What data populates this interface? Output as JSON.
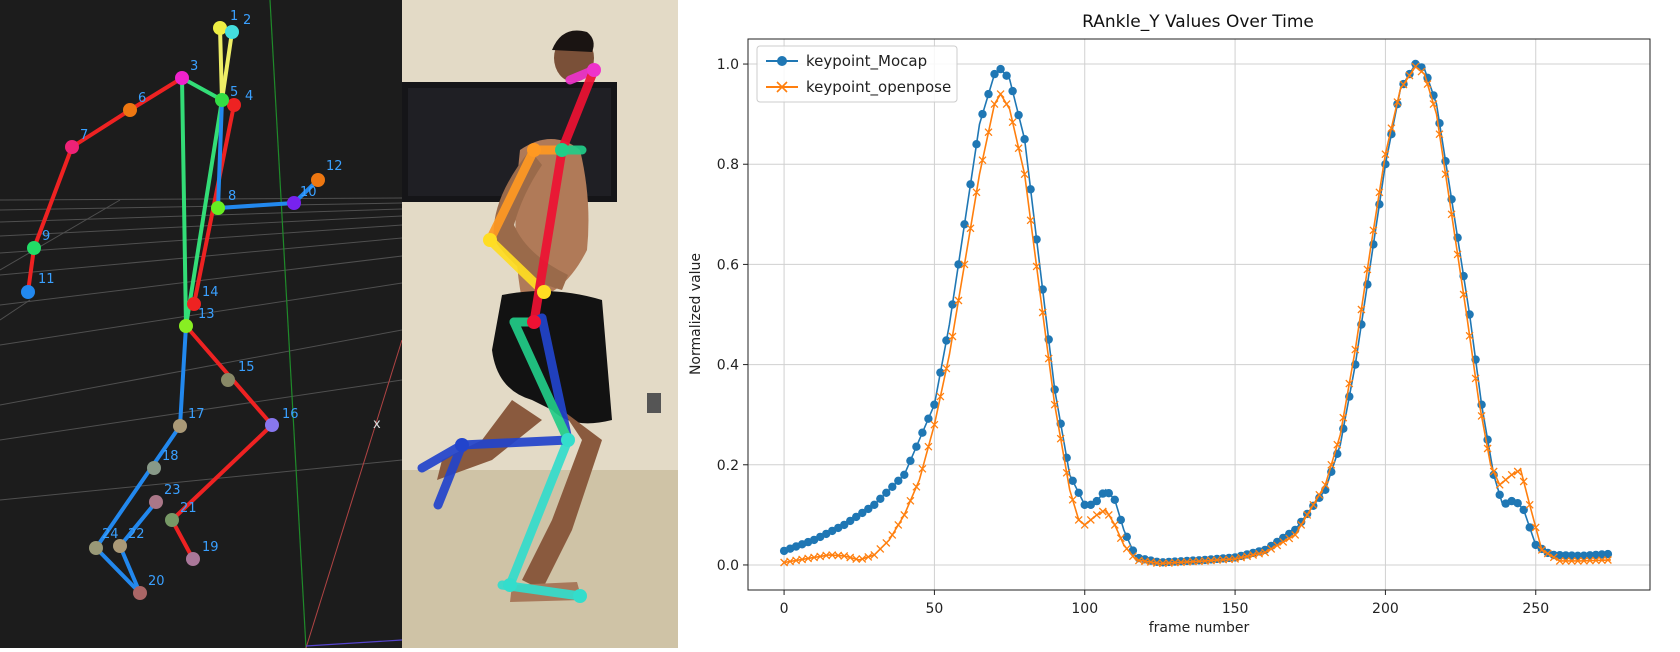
{
  "skeleton": {
    "keypoint_labels": [
      "1",
      "2",
      "3",
      "4",
      "5",
      "6",
      "7",
      "8",
      "9",
      "10",
      "11",
      "12",
      "13",
      "14",
      "15",
      "16",
      "17",
      "18",
      "19",
      "20",
      "21",
      "22",
      "23",
      "24"
    ],
    "axis_marker": "x",
    "colors": {
      "red": "#ee2222",
      "blue": "#2288ee",
      "green": "#33dd77",
      "yellow": "#eeee66"
    }
  },
  "photo": {
    "colors": {
      "magenta": "#ee33cc",
      "orange": "#ff9922",
      "yellow": "#ffdd22",
      "red": "#ee1133",
      "green": "#22cc88",
      "blue": "#2244cc",
      "cyan": "#33ddcc"
    }
  },
  "chart_data": {
    "type": "line",
    "title": "RAnkle_Y Values Over Time",
    "xlabel": "frame number",
    "ylabel": "Normalized value",
    "xlim": [
      -12,
      288
    ],
    "ylim": [
      -0.05,
      1.05
    ],
    "xticks": [
      0,
      50,
      100,
      150,
      200,
      250
    ],
    "yticks": [
      0.0,
      0.2,
      0.4,
      0.6,
      0.8,
      1.0
    ],
    "grid": true,
    "legend_position": "top-left",
    "x_range": [
      0,
      275
    ],
    "series": [
      {
        "name": "keypoint_Mocap",
        "color": "#1f77b4",
        "marker": "circle",
        "points": [
          [
            0,
            0.028
          ],
          [
            10,
            0.05
          ],
          [
            20,
            0.08
          ],
          [
            30,
            0.12
          ],
          [
            40,
            0.18
          ],
          [
            50,
            0.32
          ],
          [
            55,
            0.48
          ],
          [
            60,
            0.68
          ],
          [
            65,
            0.88
          ],
          [
            70,
            0.98
          ],
          [
            72,
            0.99
          ],
          [
            75,
            0.97
          ],
          [
            80,
            0.85
          ],
          [
            85,
            0.6
          ],
          [
            90,
            0.35
          ],
          [
            95,
            0.18
          ],
          [
            100,
            0.12
          ],
          [
            103,
            0.12
          ],
          [
            107,
            0.15
          ],
          [
            110,
            0.13
          ],
          [
            113,
            0.07
          ],
          [
            117,
            0.015
          ],
          [
            125,
            0.005
          ],
          [
            140,
            0.01
          ],
          [
            150,
            0.015
          ],
          [
            160,
            0.03
          ],
          [
            170,
            0.07
          ],
          [
            180,
            0.15
          ],
          [
            185,
            0.24
          ],
          [
            190,
            0.4
          ],
          [
            195,
            0.6
          ],
          [
            200,
            0.8
          ],
          [
            205,
            0.95
          ],
          [
            210,
            1.0
          ],
          [
            213,
            0.99
          ],
          [
            217,
            0.92
          ],
          [
            222,
            0.73
          ],
          [
            228,
            0.5
          ],
          [
            232,
            0.32
          ],
          [
            236,
            0.18
          ],
          [
            239,
            0.12
          ],
          [
            243,
            0.13
          ],
          [
            246,
            0.11
          ],
          [
            250,
            0.04
          ],
          [
            255,
            0.02
          ],
          [
            265,
            0.018
          ],
          [
            275,
            0.022
          ]
        ]
      },
      {
        "name": "keypoint_openpose",
        "color": "#ff7f0e",
        "marker": "x",
        "points": [
          [
            0,
            0.005
          ],
          [
            5,
            0.01
          ],
          [
            10,
            0.015
          ],
          [
            15,
            0.02
          ],
          [
            20,
            0.018
          ],
          [
            25,
            0.01
          ],
          [
            30,
            0.02
          ],
          [
            35,
            0.05
          ],
          [
            40,
            0.1
          ],
          [
            45,
            0.17
          ],
          [
            50,
            0.28
          ],
          [
            55,
            0.42
          ],
          [
            60,
            0.6
          ],
          [
            65,
            0.78
          ],
          [
            70,
            0.92
          ],
          [
            72,
            0.94
          ],
          [
            75,
            0.91
          ],
          [
            80,
            0.78
          ],
          [
            85,
            0.55
          ],
          [
            90,
            0.32
          ],
          [
            95,
            0.15
          ],
          [
            98,
            0.09
          ],
          [
            100,
            0.08
          ],
          [
            104,
            0.1
          ],
          [
            107,
            0.11
          ],
          [
            110,
            0.08
          ],
          [
            113,
            0.04
          ],
          [
            117,
            0.01
          ],
          [
            125,
            0.003
          ],
          [
            140,
            0.008
          ],
          [
            150,
            0.012
          ],
          [
            160,
            0.025
          ],
          [
            170,
            0.06
          ],
          [
            180,
            0.16
          ],
          [
            185,
            0.26
          ],
          [
            190,
            0.43
          ],
          [
            195,
            0.63
          ],
          [
            200,
            0.82
          ],
          [
            205,
            0.95
          ],
          [
            210,
            0.995
          ],
          [
            213,
            0.98
          ],
          [
            217,
            0.9
          ],
          [
            222,
            0.7
          ],
          [
            227,
            0.5
          ],
          [
            231,
            0.33
          ],
          [
            235,
            0.2
          ],
          [
            238,
            0.16
          ],
          [
            242,
            0.18
          ],
          [
            245,
            0.19
          ],
          [
            248,
            0.12
          ],
          [
            252,
            0.03
          ],
          [
            258,
            0.008
          ],
          [
            265,
            0.008
          ],
          [
            275,
            0.01
          ]
        ]
      }
    ]
  }
}
